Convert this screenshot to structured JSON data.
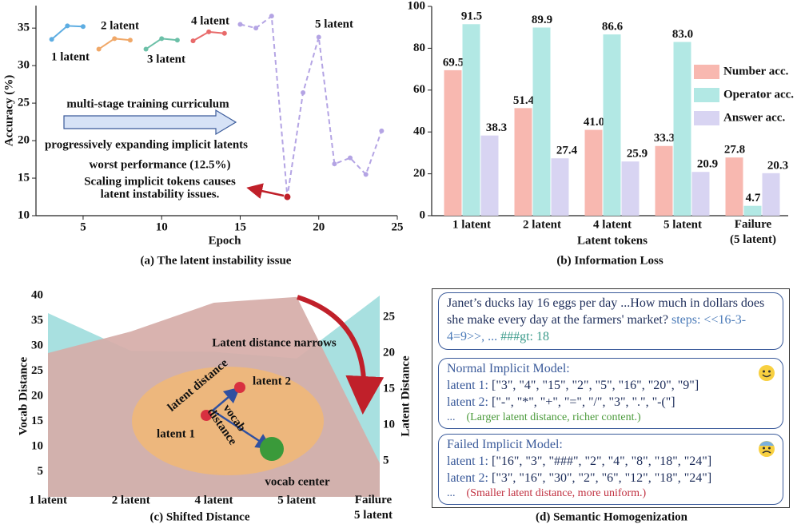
{
  "chart_data": [
    {
      "type": "line",
      "xlabel": "Epoch",
      "ylabel": "Accuracy (%)",
      "caption": "(a) The latent instability issue",
      "xlim": [
        2,
        25
      ],
      "xticks": [
        5,
        10,
        15,
        20,
        25
      ],
      "ylim": [
        10,
        38
      ],
      "yticks": [
        10,
        15,
        20,
        25,
        30,
        35
      ],
      "series": [
        {
          "name": "1 latent",
          "color": "#5dade2",
          "linestyle": "solid",
          "x": [
            3,
            4,
            5
          ],
          "values": [
            33.5,
            35.3,
            35.2
          ]
        },
        {
          "name": "2 latent",
          "color": "#f0a868",
          "linestyle": "solid",
          "x": [
            6,
            7,
            8
          ],
          "values": [
            32.2,
            33.6,
            33.4
          ]
        },
        {
          "name": "3 latent",
          "color": "#6cc0a8",
          "linestyle": "solid",
          "x": [
            9,
            10,
            11
          ],
          "values": [
            32.2,
            33.6,
            33.4
          ]
        },
        {
          "name": "4 latent",
          "color": "#e86a6a",
          "linestyle": "solid",
          "x": [
            12,
            13,
            14
          ],
          "values": [
            33.3,
            34.5,
            34.3
          ]
        },
        {
          "name": "5 latent",
          "color": "#b4a4e4",
          "linestyle": "dashed",
          "x": [
            15,
            16,
            17,
            18,
            19,
            20,
            21,
            22,
            23,
            24
          ],
          "values": [
            35.5,
            35.0,
            36.6,
            12.5,
            26.4,
            33.8,
            16.9,
            17.7,
            15.5,
            21.3
          ]
        }
      ],
      "annotations": [
        "multi-stage training curriculum",
        "progressively expanding implicit latents",
        "worst performance (12.5%)",
        "Scaling implicit tokens causes",
        "latent instability issues."
      ]
    },
    {
      "type": "bar",
      "xlabel": "Latent tokens",
      "caption": "(b) Information Loss",
      "categories": [
        "1 latent",
        "2 latent",
        "4 latent",
        "5 latent",
        "Failure\n(5 latent)"
      ],
      "ylim": [
        0,
        100
      ],
      "yticks": [
        0,
        20,
        40,
        60,
        80,
        100
      ],
      "legend": "right",
      "series": [
        {
          "name": "Number acc.",
          "color": "#f8b8b0",
          "values": [
            69.5,
            51.4,
            41.0,
            33.3,
            27.8
          ],
          "value_labels": [
            "69.5",
            "51.4",
            "41.0",
            "33.3",
            "27.8"
          ]
        },
        {
          "name": "Operator acc.",
          "color": "#b2e8e4",
          "values": [
            91.5,
            89.9,
            86.6,
            83.0,
            4.7
          ],
          "value_labels": [
            "91.5",
            "89.9",
            "86.6",
            "83.0",
            "4.7"
          ]
        },
        {
          "name": "Answer acc.",
          "color": "#d8d4f2",
          "values": [
            38.3,
            27.4,
            25.9,
            20.9,
            20.3
          ],
          "value_labels": [
            "38.3",
            "27.4",
            "25.9",
            "20.9",
            "20.3"
          ]
        }
      ]
    },
    {
      "type": "area",
      "ylabel": "Vocab Distance",
      "y2label": "Latent Distance",
      "caption": "(c) Shifted Distance",
      "categories": [
        "1 latent",
        "2 latent",
        "4 latent",
        "5 latent",
        "Failure\n5 latent"
      ],
      "ylim": [
        0,
        40
      ],
      "yticks": [
        5,
        10,
        15,
        20,
        25,
        30,
        35,
        40
      ],
      "y2lim": [
        0,
        28
      ],
      "y2ticks": [
        5,
        10,
        15,
        20,
        25
      ],
      "series": [
        {
          "name": "Vocab Distance",
          "color": "#a8e0e0",
          "values": [
            36.5,
            29.0,
            28.8,
            27.5,
            40.0
          ]
        },
        {
          "name": "Latent Distance",
          "color": "#d6aca8",
          "axis": "y2",
          "values": [
            20.0,
            23.0,
            27.0,
            27.8,
            4.7
          ]
        }
      ],
      "annotations": [
        "Latent distance narrows",
        "latent distance",
        "latent 2",
        "latent 1",
        "vocab\ndistance",
        "vocab center"
      ]
    }
  ],
  "document": {
    "question": {
      "text": "Janet’s ducks lay 16 eggs per day ...How much in dollars does she make every day at the farmers' market?",
      "steps": "steps: <<16-3-4=9>>, ...",
      "answer": "###gt: 18"
    },
    "normal": {
      "title": "Normal Implicit Model:",
      "lines": [
        {
          "label": "latent 1:",
          "tokens": "[\"3\", \"4\", \"15\", \"2\", \"5\", \"16\", \"20\", \"9\"]"
        },
        {
          "label": "latent 2:",
          "tokens": "[\"-\", \"*\", \"+\", \"=\", \"/\", \"3\", \".\", \"-(\"]"
        }
      ],
      "ellipsis": "...",
      "note": "(Larger latent distance, richer content.)"
    },
    "failed": {
      "title": "Failed Implicit Model:",
      "lines": [
        {
          "label": "latent 1:",
          "tokens": "[\"16\", \"3\", \"###\", \"2\", \"4\", \"8\", \"18\", \"24\"]"
        },
        {
          "label": "latent 2:",
          "tokens": "[\"3\", \"16\", \"30\", \"2\", \"6\", \"12\", \"18\", \"24\"]"
        }
      ],
      "ellipsis": "...",
      "note": "(Smaller latent distance, more uniform.)"
    },
    "caption": "(d) Semantic Homogenization"
  }
}
